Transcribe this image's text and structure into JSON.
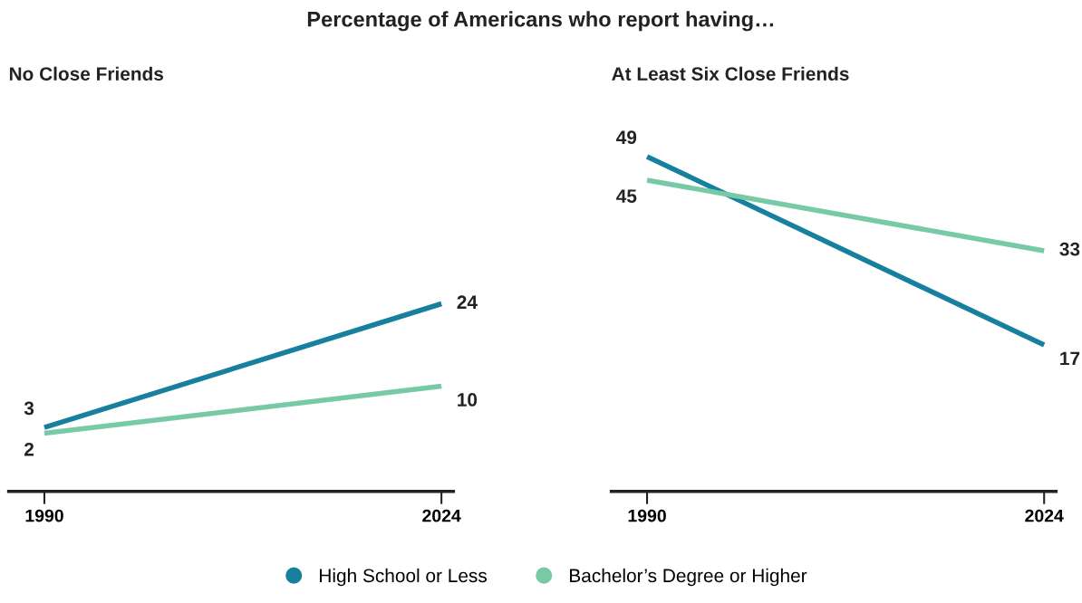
{
  "chart_data": [
    {
      "type": "line",
      "title": "No Close Friends",
      "annotations": [
        "Percentage of Americans who report having…"
      ],
      "categories": [
        "1990",
        "2024"
      ],
      "tick_labels": "x",
      "data_labels": true,
      "legend": "bottom",
      "line_style": "solid",
      "series": [
        {
          "name": "High School or Less",
          "color": "#18809f",
          "values": [
            3,
            24
          ]
        },
        {
          "name": "Bachelor’s Degree or Higher",
          "color": "#78c9a6",
          "values": [
            2,
            10
          ]
        }
      ]
    },
    {
      "type": "line",
      "title": "At Least Six Close Friends",
      "categories": [
        "1990",
        "2024"
      ],
      "tick_labels": "x",
      "data_labels": true,
      "line_style": "solid",
      "series": [
        {
          "color": "#18809f",
          "values": [
            49,
            17
          ]
        },
        {
          "color": "#78c9a6",
          "values": [
            45,
            33
          ]
        }
      ]
    }
  ]
}
